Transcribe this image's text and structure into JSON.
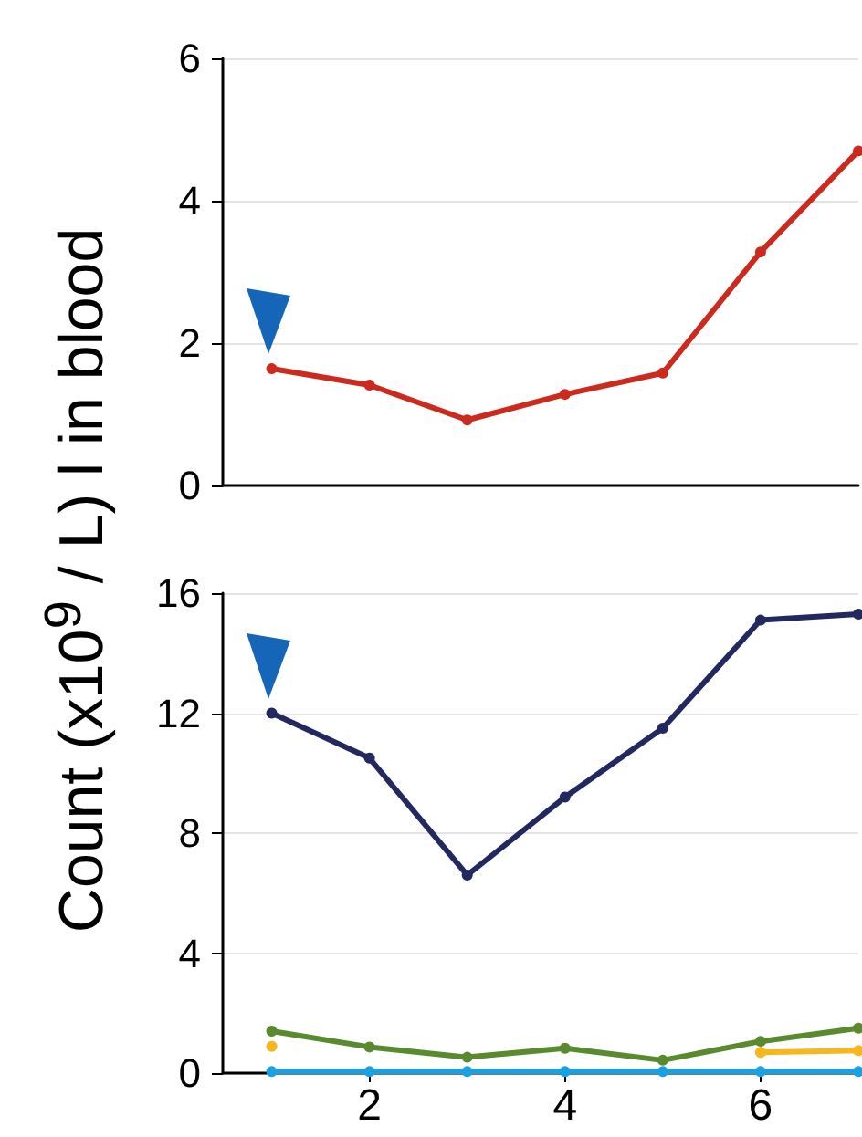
{
  "chart_data": [
    {
      "type": "line",
      "x": [
        1,
        2,
        3,
        4,
        5,
        6,
        7
      ],
      "xlim": [
        0.5,
        7
      ],
      "xticks": [
        2,
        4,
        6
      ],
      "ylim": [
        0,
        6
      ],
      "yticks": [
        0,
        2,
        4,
        6
      ],
      "tick_labels": "y",
      "grid": "y",
      "marker": "circle",
      "series": [
        {
          "color": "#cc2a1e",
          "values": [
            1.64,
            1.41,
            0.92,
            1.28,
            1.58,
            3.28,
            4.7
          ]
        }
      ]
    },
    {
      "type": "line",
      "ylabel": "Count  (x10$^{9}$ / L) l in blood",
      "x": [
        1,
        2,
        3,
        4,
        5,
        6,
        7
      ],
      "xlim": [
        0.5,
        7
      ],
      "xticks": [
        2,
        4,
        6
      ],
      "ylim": [
        0,
        16
      ],
      "yticks": [
        0,
        4,
        8,
        12,
        16
      ],
      "grid": "y",
      "marker": "circle",
      "series": [
        {
          "color": "#23295e",
          "values": [
            12.0,
            10.5,
            6.6,
            9.2,
            11.5,
            15.1,
            15.3
          ]
        },
        {
          "color": "#1ba1e2",
          "values": [
            0.05,
            0.05,
            0.05,
            0.05,
            0.05,
            0.05,
            0.05
          ]
        },
        {
          "color": "#f7b61b",
          "values": [
            0.89,
            null,
            null,
            null,
            null,
            0.69,
            0.75
          ]
        },
        {
          "color": "#5a8a2e",
          "values": [
            1.4,
            0.87,
            0.53,
            0.83,
            0.43,
            1.06,
            1.5
          ]
        }
      ]
    }
  ]
}
